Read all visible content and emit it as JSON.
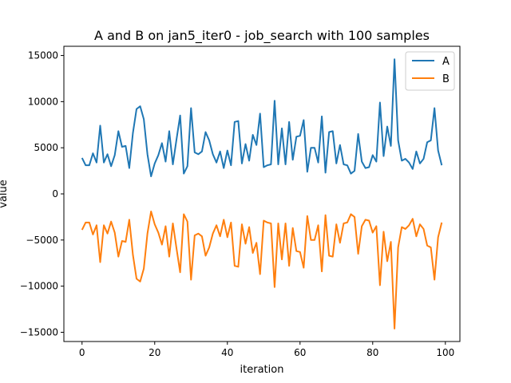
{
  "chart_data": {
    "type": "line",
    "title": "A and B on jan5_iter0 - job_search with 100 samples",
    "xlabel": "iteration",
    "ylabel": "value",
    "xlim": [
      -5,
      104
    ],
    "ylim": [
      -16000,
      16000
    ],
    "xticks": [
      0,
      20,
      40,
      60,
      80,
      100
    ],
    "yticks": [
      -15000,
      -10000,
      -5000,
      0,
      5000,
      10000,
      15000
    ],
    "xtick_labels": [
      "0",
      "20",
      "40",
      "60",
      "80",
      "100"
    ],
    "ytick_labels": [
      "−15000",
      "−10000",
      "−5000",
      "0",
      "5000",
      "10000",
      "15000"
    ],
    "grid": false,
    "legend": "top-right",
    "x": [
      0,
      1,
      2,
      3,
      4,
      5,
      6,
      7,
      8,
      9,
      10,
      11,
      12,
      13,
      14,
      15,
      16,
      17,
      18,
      19,
      20,
      21,
      22,
      23,
      24,
      25,
      26,
      27,
      28,
      29,
      30,
      31,
      32,
      33,
      34,
      35,
      36,
      37,
      38,
      39,
      40,
      41,
      42,
      43,
      44,
      45,
      46,
      47,
      48,
      49,
      50,
      51,
      52,
      53,
      54,
      55,
      56,
      57,
      58,
      59,
      60,
      61,
      62,
      63,
      64,
      65,
      66,
      67,
      68,
      69,
      70,
      71,
      72,
      73,
      74,
      75,
      76,
      77,
      78,
      79,
      80,
      81,
      82,
      83,
      84,
      85,
      86,
      87,
      88,
      89,
      90,
      91,
      92,
      93,
      94,
      95,
      96,
      97,
      98,
      99
    ],
    "series": [
      {
        "name": "A",
        "color": "#1f77b4",
        "values": [
          3900,
          3100,
          3100,
          4400,
          3400,
          7400,
          3400,
          4300,
          3000,
          4200,
          6800,
          5100,
          5200,
          2800,
          6600,
          9200,
          9500,
          8100,
          4300,
          1900,
          3300,
          4200,
          5500,
          3500,
          6800,
          3200,
          5900,
          8500,
          2200,
          3000,
          9300,
          4500,
          4300,
          4600,
          6700,
          5800,
          4300,
          3400,
          4600,
          2800,
          4700,
          3100,
          7800,
          7900,
          3300,
          5400,
          3600,
          6400,
          5300,
          8700,
          2900,
          3100,
          3200,
          10100,
          3200,
          7100,
          3200,
          7800,
          3700,
          6200,
          6300,
          8000,
          2400,
          5000,
          5000,
          3400,
          8400,
          2300,
          6700,
          6800,
          3300,
          5300,
          3200,
          3100,
          2200,
          2500,
          6500,
          3500,
          2800,
          2900,
          4200,
          3500,
          9900,
          4100,
          7300,
          5200,
          14600,
          5800,
          3600,
          3800,
          3400,
          2700,
          4600,
          3300,
          3800,
          5600,
          5800,
          9300,
          4700,
          3100
        ]
      },
      {
        "name": "B",
        "color": "#ff7f0e",
        "values": [
          -3900,
          -3100,
          -3100,
          -4400,
          -3400,
          -7400,
          -3400,
          -4300,
          -3000,
          -4200,
          -6800,
          -5100,
          -5200,
          -2800,
          -6600,
          -9200,
          -9500,
          -8100,
          -4300,
          -1900,
          -3300,
          -4200,
          -5500,
          -3500,
          -6800,
          -3200,
          -5900,
          -8500,
          -2200,
          -3000,
          -9300,
          -4500,
          -4300,
          -4600,
          -6700,
          -5800,
          -4300,
          -3400,
          -4600,
          -2800,
          -4700,
          -3100,
          -7800,
          -7900,
          -3300,
          -5400,
          -3600,
          -6400,
          -5300,
          -8700,
          -2900,
          -3100,
          -3200,
          -10100,
          -3200,
          -7100,
          -3200,
          -7800,
          -3700,
          -6200,
          -6300,
          -8000,
          -2400,
          -5000,
          -5000,
          -3400,
          -8400,
          -2300,
          -6700,
          -6800,
          -3300,
          -5300,
          -3200,
          -3100,
          -2200,
          -2500,
          -6500,
          -3500,
          -2800,
          -2900,
          -4200,
          -3500,
          -9900,
          -4100,
          -7300,
          -5200,
          -14600,
          -5800,
          -3600,
          -3800,
          -3400,
          -2700,
          -4600,
          -3300,
          -3800,
          -5600,
          -5800,
          -9300,
          -4700,
          -3100
        ]
      }
    ]
  }
}
